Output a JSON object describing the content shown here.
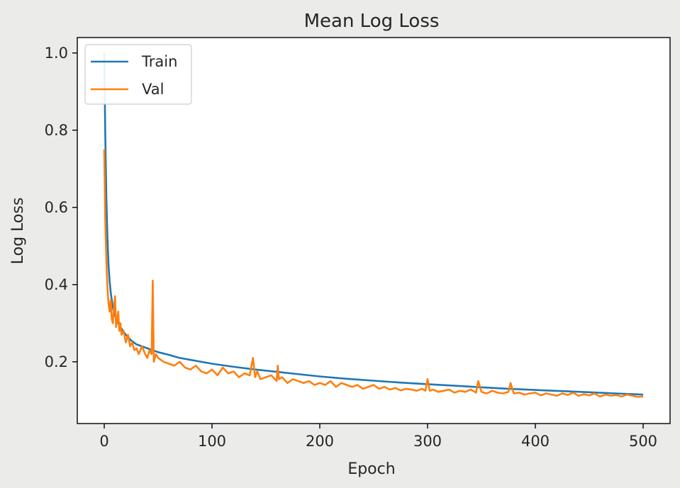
{
  "chart_data": {
    "type": "line",
    "title": "Mean Log Loss",
    "xlabel": "Epoch",
    "ylabel": "Log Loss",
    "xlim": [
      -25,
      525
    ],
    "ylim": [
      0.04,
      1.04
    ],
    "xticks": [
      0,
      100,
      200,
      300,
      400,
      500
    ],
    "xtick_labels": [
      "0",
      "100",
      "200",
      "300",
      "400",
      "500"
    ],
    "yticks": [
      0.2,
      0.4,
      0.6,
      0.8,
      1.0
    ],
    "ytick_labels": [
      "0.2",
      "0.4",
      "0.6",
      "0.8",
      "1.0"
    ],
    "grid": false,
    "legend_position": "top-left",
    "series": [
      {
        "name": "Train",
        "color": "#1f77b4",
        "x": [
          0,
          1,
          2,
          3,
          4,
          5,
          6,
          7,
          8,
          10,
          12,
          15,
          20,
          25,
          30,
          40,
          50,
          60,
          70,
          80,
          100,
          120,
          140,
          160,
          180,
          200,
          225,
          250,
          275,
          300,
          325,
          350,
          375,
          400,
          425,
          450,
          475,
          500
        ],
        "y": [
          1.0,
          0.78,
          0.62,
          0.52,
          0.45,
          0.41,
          0.38,
          0.36,
          0.34,
          0.32,
          0.305,
          0.29,
          0.27,
          0.255,
          0.245,
          0.235,
          0.225,
          0.218,
          0.21,
          0.205,
          0.195,
          0.187,
          0.18,
          0.174,
          0.168,
          0.162,
          0.156,
          0.151,
          0.146,
          0.142,
          0.138,
          0.134,
          0.13,
          0.127,
          0.124,
          0.121,
          0.118,
          0.115
        ]
      },
      {
        "name": "Val",
        "color": "#ff7f0e",
        "x": [
          0,
          1,
          2,
          3,
          4,
          5,
          6,
          7,
          8,
          9,
          10,
          11,
          12,
          13,
          14,
          15,
          16,
          18,
          20,
          22,
          24,
          26,
          28,
          30,
          32,
          35,
          38,
          40,
          42,
          44,
          45,
          46,
          48,
          50,
          55,
          60,
          65,
          70,
          75,
          80,
          85,
          90,
          95,
          100,
          105,
          110,
          115,
          120,
          125,
          130,
          135,
          138,
          140,
          142,
          145,
          150,
          155,
          160,
          161,
          162,
          165,
          170,
          175,
          180,
          185,
          190,
          195,
          200,
          205,
          210,
          215,
          220,
          225,
          230,
          235,
          240,
          245,
          250,
          255,
          260,
          265,
          270,
          275,
          280,
          285,
          290,
          295,
          298,
          300,
          302,
          305,
          310,
          315,
          320,
          325,
          330,
          335,
          340,
          345,
          347,
          350,
          355,
          360,
          365,
          370,
          375,
          377,
          380,
          385,
          390,
          395,
          400,
          405,
          410,
          415,
          420,
          425,
          430,
          435,
          440,
          445,
          450,
          455,
          460,
          465,
          470,
          475,
          480,
          485,
          490,
          495,
          500
        ],
        "y": [
          0.75,
          0.56,
          0.46,
          0.39,
          0.35,
          0.33,
          0.36,
          0.31,
          0.3,
          0.34,
          0.37,
          0.29,
          0.31,
          0.33,
          0.28,
          0.3,
          0.27,
          0.28,
          0.25,
          0.27,
          0.24,
          0.25,
          0.23,
          0.235,
          0.22,
          0.24,
          0.22,
          0.21,
          0.23,
          0.22,
          0.41,
          0.2,
          0.22,
          0.21,
          0.2,
          0.195,
          0.19,
          0.2,
          0.185,
          0.18,
          0.19,
          0.175,
          0.17,
          0.18,
          0.165,
          0.185,
          0.17,
          0.175,
          0.16,
          0.17,
          0.165,
          0.21,
          0.16,
          0.175,
          0.155,
          0.16,
          0.165,
          0.15,
          0.19,
          0.155,
          0.16,
          0.145,
          0.155,
          0.15,
          0.145,
          0.15,
          0.14,
          0.145,
          0.14,
          0.15,
          0.135,
          0.145,
          0.14,
          0.135,
          0.14,
          0.13,
          0.135,
          0.14,
          0.13,
          0.135,
          0.128,
          0.132,
          0.126,
          0.13,
          0.128,
          0.125,
          0.13,
          0.125,
          0.155,
          0.125,
          0.128,
          0.122,
          0.125,
          0.128,
          0.12,
          0.125,
          0.122,
          0.128,
          0.12,
          0.15,
          0.122,
          0.118,
          0.125,
          0.12,
          0.118,
          0.122,
          0.145,
          0.118,
          0.12,
          0.115,
          0.118,
          0.12,
          0.113,
          0.118,
          0.115,
          0.112,
          0.118,
          0.114,
          0.12,
          0.112,
          0.116,
          0.113,
          0.118,
          0.11,
          0.115,
          0.112,
          0.114,
          0.11,
          0.115,
          0.112,
          0.109,
          0.11
        ]
      }
    ]
  }
}
